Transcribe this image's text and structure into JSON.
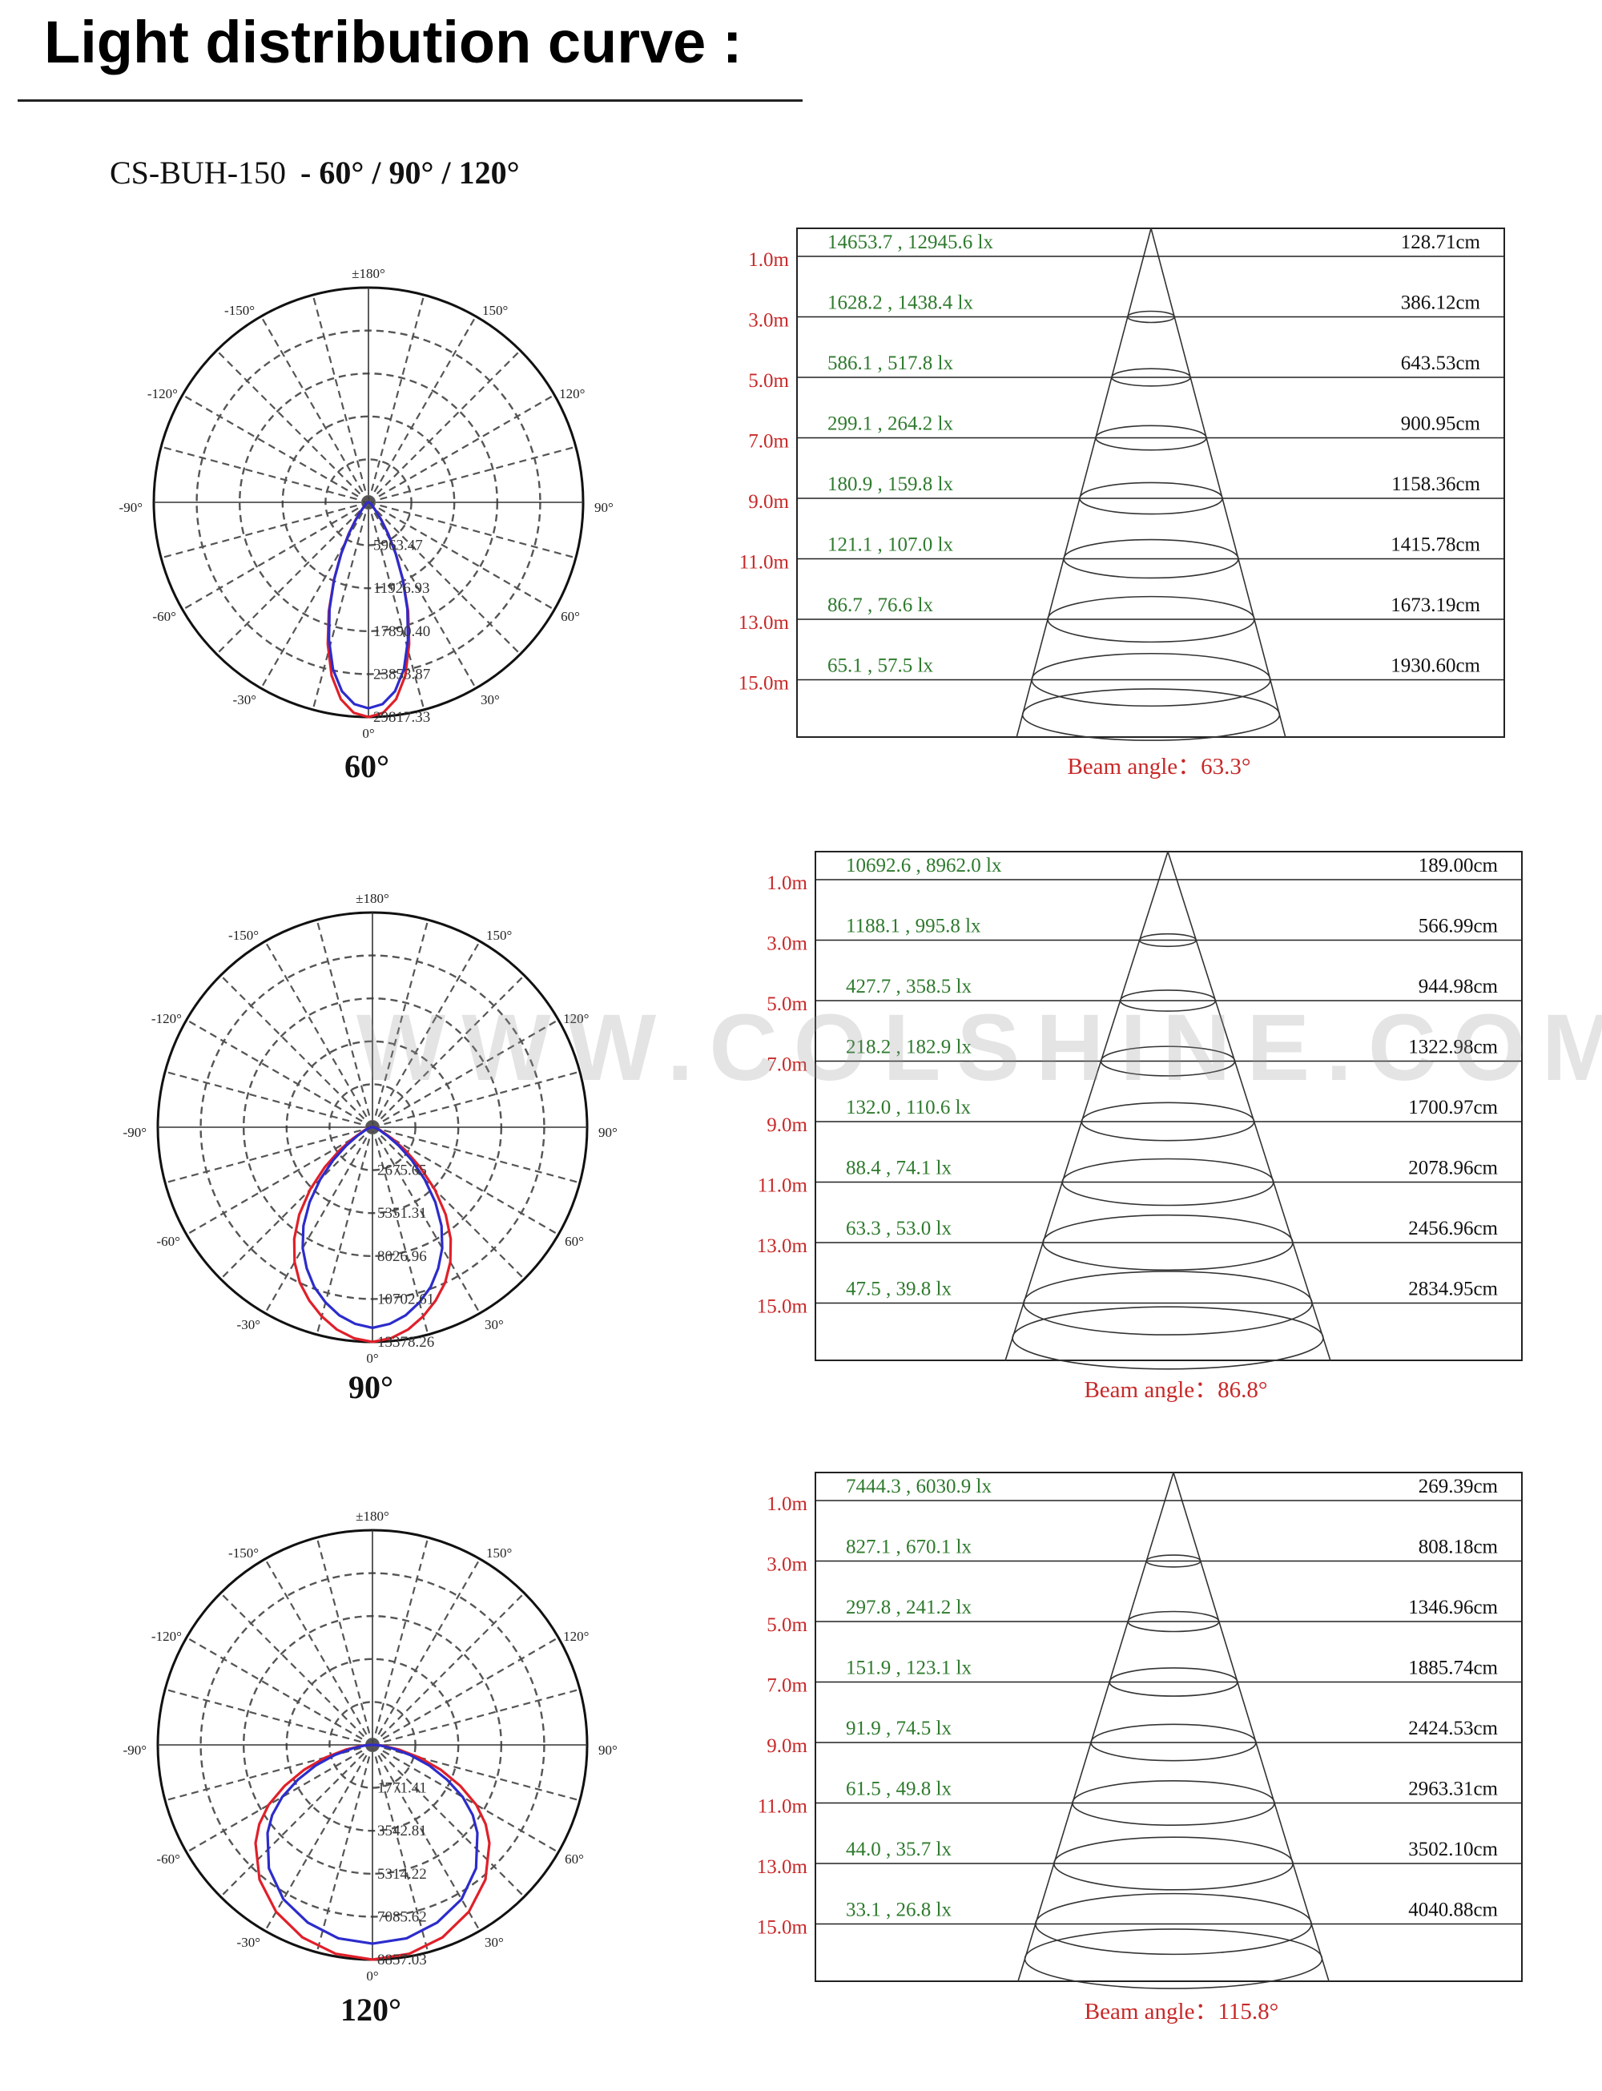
{
  "header": {
    "title": "Light distribution curve :"
  },
  "product": {
    "model": "CS-BUH-150",
    "variants": "- 60° / 90° / 120°"
  },
  "watermark": "WWW.COLSHINE.COM",
  "colors": {
    "red_curve": "#e0202a",
    "blue_curve": "#2c2ccc",
    "lux_text": "#2e7a2e",
    "beam_text": "#c82828",
    "grid": "#555555"
  },
  "chart_data": [
    {
      "type": "polar",
      "label": "60°",
      "angle_labels": [
        "±180°",
        "-150°",
        "150°",
        "-120°",
        "120°",
        "-90°",
        "90°",
        "-60°",
        "60°",
        "-30°",
        "30°",
        "0°"
      ],
      "radial_labels": [
        "5963.47",
        "11926.93",
        "17890.40",
        "23853.87",
        "29817.33"
      ],
      "rmax": 29817.33,
      "series": [
        {
          "color": "red",
          "theta": [
            0,
            4,
            8,
            12,
            16,
            20,
            24,
            28,
            32,
            36,
            40,
            50,
            60,
            70,
            80,
            90
          ],
          "r": [
            29817,
            29300,
            27600,
            24600,
            20500,
            16100,
            11800,
            8100,
            5200,
            3100,
            1800,
            700,
            350,
            200,
            120,
            80
          ]
        },
        {
          "color": "blue",
          "theta": [
            0,
            4,
            8,
            12,
            16,
            20,
            24,
            28,
            32,
            36,
            40,
            50,
            60,
            70,
            80,
            90
          ],
          "r": [
            28600,
            28100,
            26500,
            23700,
            19900,
            15800,
            11700,
            8000,
            5100,
            3000,
            1700,
            650,
            320,
            180,
            110,
            70
          ]
        }
      ]
    },
    {
      "type": "table",
      "distances": [
        "1.0m",
        "3.0m",
        "5.0m",
        "7.0m",
        "9.0m",
        "11.0m",
        "13.0m",
        "15.0m"
      ],
      "lux": [
        "14653.7 , 12945.6 lx",
        "1628.2 , 1438.4 lx",
        "586.1 , 517.8 lx",
        "299.1 , 264.2 lx",
        "180.9 , 159.8 lx",
        "121.1 , 107.0 lx",
        "86.7 , 76.6 lx",
        "65.1 , 57.5 lx"
      ],
      "diameters": [
        "128.71cm",
        "386.12cm",
        "643.53cm",
        "900.95cm",
        "1158.36cm",
        "1415.78cm",
        "1673.19cm",
        "1930.60cm"
      ],
      "beam_angle": "Beam angle：63.3°"
    },
    {
      "type": "polar",
      "label": "90°",
      "angle_labels": [
        "±180°",
        "-150°",
        "150°",
        "-120°",
        "120°",
        "-90°",
        "90°",
        "-60°",
        "60°",
        "-30°",
        "30°",
        "0°"
      ],
      "radial_labels": [
        "2675.65",
        "5351.31",
        "8026.96",
        "10702.61",
        "13378.26"
      ],
      "rmax": 13378.26,
      "series": [
        {
          "color": "red",
          "theta": [
            0,
            5,
            10,
            15,
            20,
            25,
            30,
            35,
            40,
            45,
            50,
            55,
            60,
            70,
            80,
            90
          ],
          "r": [
            13378,
            13200,
            12800,
            12200,
            11500,
            10700,
            9700,
            8500,
            7100,
            5500,
            3900,
            2500,
            1400,
            500,
            200,
            100
          ]
        },
        {
          "color": "blue",
          "theta": [
            0,
            5,
            10,
            15,
            20,
            25,
            30,
            35,
            40,
            45,
            50,
            55,
            60,
            70,
            80,
            90
          ],
          "r": [
            12500,
            12300,
            11900,
            11300,
            10600,
            9700,
            8700,
            7500,
            6100,
            4600,
            3200,
            2000,
            1100,
            400,
            150,
            80
          ]
        }
      ]
    },
    {
      "type": "table",
      "distances": [
        "1.0m",
        "3.0m",
        "5.0m",
        "7.0m",
        "9.0m",
        "11.0m",
        "13.0m",
        "15.0m"
      ],
      "lux": [
        "10692.6 , 8962.0 lx",
        "1188.1 , 995.8 lx",
        "427.7 , 358.5 lx",
        "218.2 , 182.9 lx",
        "132.0 , 110.6 lx",
        "88.4 , 74.1 lx",
        "63.3 , 53.0 lx",
        "47.5 , 39.8 lx"
      ],
      "diameters": [
        "189.00cm",
        "566.99cm",
        "944.98cm",
        "1322.98cm",
        "1700.97cm",
        "2078.96cm",
        "2456.96cm",
        "2834.95cm"
      ],
      "beam_angle": "Beam angle：86.8°"
    },
    {
      "type": "polar",
      "label": "120°",
      "angle_labels": [
        "±180°",
        "-150°",
        "150°",
        "-120°",
        "120°",
        "-90°",
        "90°",
        "-60°",
        "60°",
        "-30°",
        "30°",
        "0°"
      ],
      "radial_labels": [
        "1771.41",
        "3542.81",
        "5314.22",
        "7085.62",
        "8857.03"
      ],
      "rmax": 8857.03,
      "series": [
        {
          "color": "red",
          "theta": [
            0,
            10,
            20,
            30,
            40,
            50,
            55,
            60,
            65,
            70,
            75,
            80,
            85,
            90
          ],
          "r": [
            8857,
            8750,
            8450,
            7950,
            7250,
            6300,
            5700,
            4950,
            4000,
            3000,
            2000,
            1100,
            450,
            100
          ]
        },
        {
          "color": "blue",
          "theta": [
            0,
            10,
            20,
            30,
            40,
            50,
            55,
            60,
            65,
            70,
            75,
            80,
            85,
            90
          ],
          "r": [
            8200,
            8100,
            7800,
            7350,
            6650,
            5650,
            5050,
            4300,
            3400,
            2500,
            1600,
            850,
            350,
            80
          ]
        }
      ]
    },
    {
      "type": "table",
      "distances": [
        "1.0m",
        "3.0m",
        "5.0m",
        "7.0m",
        "9.0m",
        "11.0m",
        "13.0m",
        "15.0m"
      ],
      "lux": [
        "7444.3 , 6030.9 lx",
        "827.1 , 670.1 lx",
        "297.8 , 241.2 lx",
        "151.9 , 123.1 lx",
        "91.9 , 74.5 lx",
        "61.5 , 49.8 lx",
        "44.0 , 35.7 lx",
        "33.1 , 26.8 lx"
      ],
      "diameters": [
        "269.39cm",
        "808.18cm",
        "1346.96cm",
        "1885.74cm",
        "2424.53cm",
        "2963.31cm",
        "3502.10cm",
        "4040.88cm"
      ],
      "beam_angle": "Beam angle：115.8°"
    }
  ]
}
